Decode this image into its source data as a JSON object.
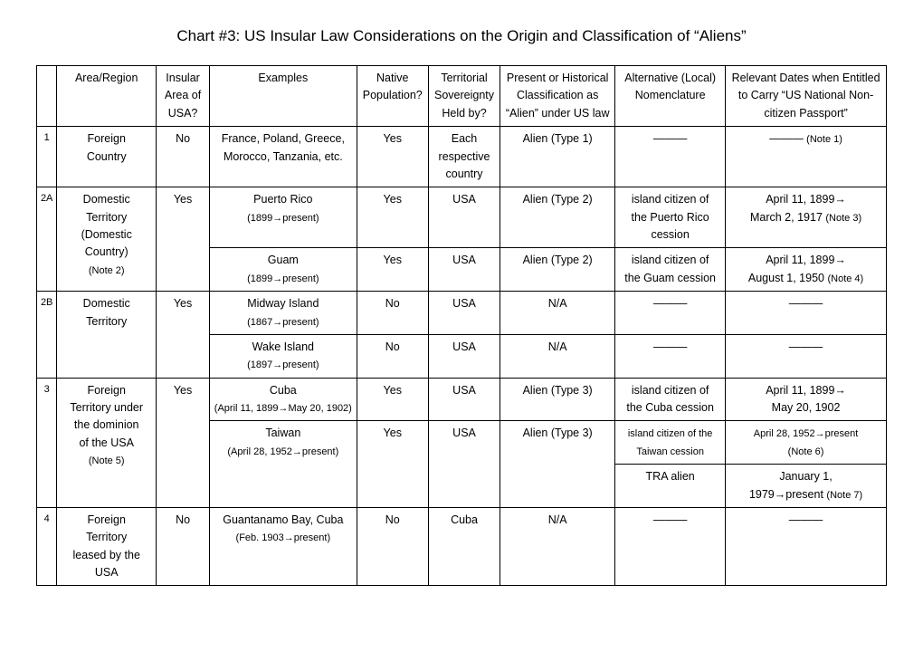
{
  "title": "Chart #3: US Insular Law Considerations on the Origin and Classification of “Aliens”",
  "headers": {
    "h0": "",
    "h1": "Area/Region",
    "h2_l1": "Insular",
    "h2_l2": "Area of",
    "h2_l3": "USA?",
    "h3": "Examples",
    "h4_l1": "Native",
    "h4_l2": "Population?",
    "h5_l1": "Territorial",
    "h5_l2": "Sovereignty",
    "h5_l3": "Held by?",
    "h6_l1": "Present or Historical",
    "h6_l2": "Classification as",
    "h6_l3": "“Alien” under US law",
    "h7_l1": "Alternative (Local)",
    "h7_l2": "Nomenclature",
    "h8_l1": "Relevant Dates when Entitled",
    "h8_l2": "to Carry “US National Non-",
    "h8_l3": "citizen Passport”"
  },
  "r1": {
    "id": "1",
    "area_l1": "Foreign",
    "area_l2": "Country",
    "ins": "No",
    "ex_l1": "France, Poland, Greece,",
    "ex_l2": "Morocco, Tanzania, etc.",
    "nat": "Yes",
    "sov_l1": "Each",
    "sov_l2": "respective",
    "sov_l3": "country",
    "cls": "Alien (Type 1)",
    "nom": "———",
    "dat_main": "——— ",
    "dat_note": "(Note 1)"
  },
  "r2a": {
    "id": "2A",
    "area_l1": "Domestic",
    "area_l2": "Territory",
    "area_l3": "(Domestic",
    "area_l4": "Country)",
    "area_note": "(Note 2)",
    "ins": "Yes",
    "pr_ex": "Puerto Rico",
    "pr_ex_sub": "(1899→present)",
    "pr_nat": "Yes",
    "pr_sov": "USA",
    "pr_cls": "Alien (Type 2)",
    "pr_nom_l1": "island citizen of",
    "pr_nom_l2": "the Puerto Rico",
    "pr_nom_l3": "cession",
    "pr_dat_l1": "April 11, 1899→",
    "pr_dat_l2": "March 2, 1917 ",
    "pr_dat_note": "(Note 3)",
    "gu_ex": "Guam",
    "gu_ex_sub": "(1899→present)",
    "gu_nat": "Yes",
    "gu_sov": "USA",
    "gu_cls": "Alien (Type 2)",
    "gu_nom_l1": "island citizen of",
    "gu_nom_l2": "the Guam cession",
    "gu_dat_l1": "April 11, 1899→",
    "gu_dat_l2": "August 1, 1950 ",
    "gu_dat_note": "(Note 4)"
  },
  "r2b": {
    "id": "2B",
    "area_l1": "Domestic",
    "area_l2": "Territory",
    "ins": "Yes",
    "mi_ex": "Midway Island",
    "mi_ex_sub": "(1867→present)",
    "mi_nat": "No",
    "mi_sov": "USA",
    "mi_cls": "N/A",
    "mi_nom": "———",
    "mi_dat": "———",
    "wa_ex": "Wake Island",
    "wa_ex_sub": "(1897→present)",
    "wa_nat": "No",
    "wa_sov": "USA",
    "wa_cls": "N/A",
    "wa_nom": "———",
    "wa_dat": "———"
  },
  "r3": {
    "id": "3",
    "area_l1": "Foreign",
    "area_l2": "Territory under",
    "area_l3": "the dominion",
    "area_l4": "of the USA",
    "area_note": "(Note 5)",
    "ins": "Yes",
    "cu_ex": "Cuba",
    "cu_ex_sub": "(April 11, 1899→May 20, 1902)",
    "cu_nat": "Yes",
    "cu_sov": "USA",
    "cu_cls": "Alien (Type 3)",
    "cu_nom_l1": "island citizen of",
    "cu_nom_l2": "the Cuba cession",
    "cu_dat_l1": "April 11, 1899→",
    "cu_dat_l2": "May 20, 1902",
    "tw_ex": "Taiwan",
    "tw_ex_sub": "(April 28, 1952→present)",
    "tw_nat": "Yes",
    "tw_sov": "USA",
    "tw_cls": "Alien (Type 3)",
    "tw_nom1_l1": "island citizen of the",
    "tw_nom1_l2": "Taiwan cession",
    "tw_dat1_main": "April 28, 1952→present",
    "tw_dat1_note": "(Note 6)",
    "tw_nom2": "TRA alien",
    "tw_dat2_l1": "January 1,",
    "tw_dat2_l2": "1979→present ",
    "tw_dat2_note": "(Note 7)"
  },
  "r4": {
    "id": "4",
    "area_l1": "Foreign",
    "area_l2": "Territory",
    "area_l3": "leased by the",
    "area_l4": "USA",
    "ins": "No",
    "ex": "Guantanamo Bay, Cuba",
    "ex_sub": "(Feb. 1903→present)",
    "nat": "No",
    "sov": "Cuba",
    "cls": "N/A",
    "nom": "———",
    "dat": "———"
  }
}
